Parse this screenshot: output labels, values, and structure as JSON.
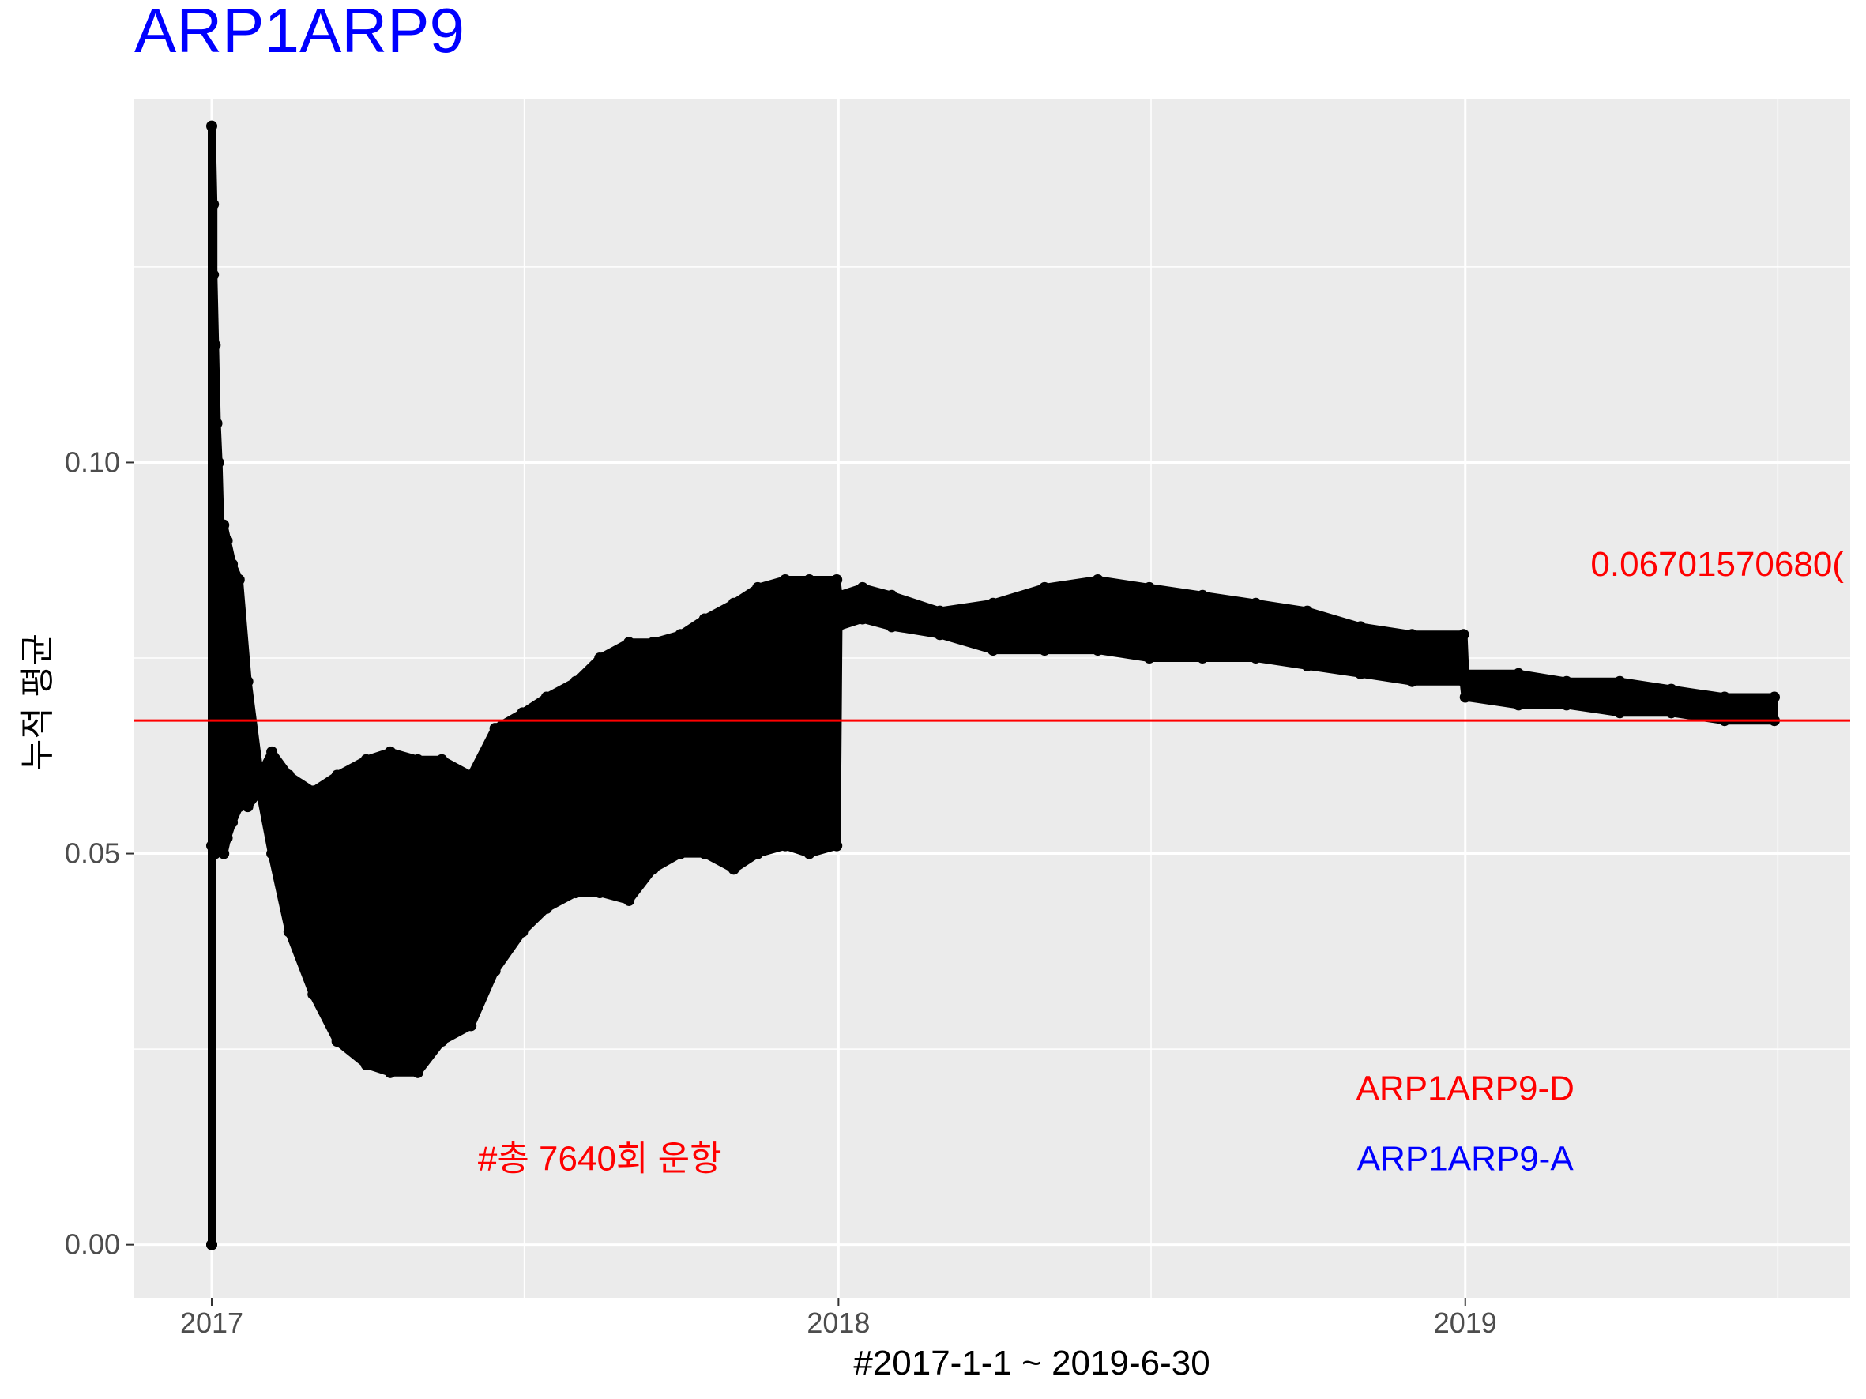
{
  "chart_data": {
    "type": "line",
    "title": "ARP1ARP9",
    "xlabel": "#2017-1-1 ~ 2019-6-30",
    "ylabel": "누적 평균",
    "x_range": [
      "2017-01-01",
      "2019-06-30"
    ],
    "ylim": [
      -0.0068,
      0.1465
    ],
    "x_ticks": [
      {
        "label": "2017",
        "date": "2017-01-01"
      },
      {
        "label": "2018",
        "date": "2018-01-01"
      },
      {
        "label": "2019",
        "date": "2019-01-01"
      }
    ],
    "y_ticks": [
      {
        "label": "0.00",
        "value": 0.0
      },
      {
        "label": "0.05",
        "value": 0.05
      },
      {
        "label": "0.10",
        "value": 0.1
      }
    ],
    "grid": true,
    "hline": {
      "value": 0.067015706806,
      "color": "#ff0000"
    },
    "annotations": [
      {
        "text": "0.06701570680(",
        "color": "#ff0000"
      },
      {
        "text": "ARP1ARP9-D",
        "color": "#ff0000"
      },
      {
        "text": "ARP1ARP9-A",
        "color": "#0000ff"
      },
      {
        "text": "#총 7640회 운항",
        "color": "#ff0000"
      }
    ],
    "series": [
      {
        "x": [
          "2017-01-01",
          "2017-01-01",
          "2017-01-02",
          "2017-01-02",
          "2017-01-03",
          "2017-01-04",
          "2017-01-05",
          "2017-01-06",
          "2017-01-08",
          "2017-01-10",
          "2017-01-13",
          "2017-01-17",
          "2017-01-22",
          "2017-01-29",
          "2017-02-05",
          "2017-02-15",
          "2017-03-01",
          "2017-03-15",
          "2017-04-01",
          "2017-04-15",
          "2017-05-01",
          "2017-05-15",
          "2017-06-01",
          "2017-06-15",
          "2017-07-01",
          "2017-07-15",
          "2017-08-01",
          "2017-08-15",
          "2017-09-01",
          "2017-09-15",
          "2017-10-01",
          "2017-10-15",
          "2017-11-01",
          "2017-11-15",
          "2017-12-01",
          "2017-12-15",
          "2017-12-31",
          "2018-01-01",
          "2018-01-15",
          "2018-02-01",
          "2018-03-01",
          "2018-04-01",
          "2018-05-01",
          "2018-06-01",
          "2018-07-01",
          "2018-08-01",
          "2018-09-01",
          "2018-10-01",
          "2018-11-01",
          "2018-12-01",
          "2018-12-31",
          "2019-01-01",
          "2019-02-01",
          "2019-03-01",
          "2019-04-01",
          "2019-05-01",
          "2019-06-01",
          "2019-06-30"
        ],
        "upper": [
          0.0,
          0.143,
          0.133,
          0.124,
          0.115,
          0.105,
          0.1,
          0.092,
          0.092,
          0.09,
          0.087,
          0.085,
          0.072,
          0.06,
          0.063,
          0.06,
          0.058,
          0.06,
          0.062,
          0.063,
          0.062,
          0.062,
          0.06,
          0.066,
          0.068,
          0.07,
          0.072,
          0.075,
          0.077,
          0.077,
          0.078,
          0.08,
          0.082,
          0.084,
          0.085,
          0.085,
          0.085,
          0.083,
          0.084,
          0.083,
          0.081,
          0.082,
          0.084,
          0.085,
          0.084,
          0.083,
          0.082,
          0.081,
          0.079,
          0.078,
          0.078,
          0.073,
          0.073,
          0.072,
          0.072,
          0.071,
          0.07,
          0.07
        ],
        "lower": [
          0.0,
          0.051,
          0.051,
          0.05,
          0.05,
          0.052,
          0.051,
          0.051,
          0.05,
          0.052,
          0.054,
          0.056,
          0.056,
          0.058,
          0.05,
          0.04,
          0.032,
          0.026,
          0.023,
          0.022,
          0.022,
          0.026,
          0.028,
          0.035,
          0.04,
          0.043,
          0.045,
          0.045,
          0.044,
          0.048,
          0.05,
          0.05,
          0.048,
          0.05,
          0.051,
          0.05,
          0.051,
          0.079,
          0.08,
          0.079,
          0.078,
          0.076,
          0.076,
          0.076,
          0.075,
          0.075,
          0.075,
          0.074,
          0.073,
          0.072,
          0.072,
          0.07,
          0.069,
          0.069,
          0.068,
          0.068,
          0.067,
          0.067
        ]
      }
    ]
  }
}
